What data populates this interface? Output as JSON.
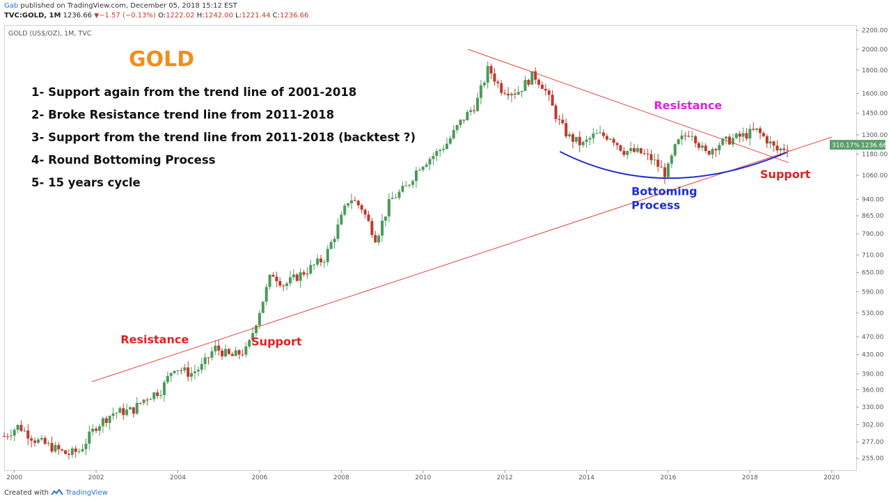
{
  "header": {
    "user": "Gab",
    "published": "published on TradingView.com, December 05, 2018 15:12 EST",
    "symbol": "TVC:GOLD, 1M",
    "last": "1236.66",
    "change": "−1.57 (−0.13%)",
    "o_label": "O:",
    "o": "1222.02",
    "h_label": "H:",
    "h": "1242.00",
    "l_label": "L:",
    "l": "1221.44",
    "c_label": "C:",
    "c": "1236.66"
  },
  "footer": {
    "created": "Created with",
    "brand": "TradingView"
  },
  "colors": {
    "up": "#4a9a5a",
    "down": "#c0392b",
    "trend": "#e8413a",
    "bottom_curve": "#1f2fd0",
    "axis_text": "#555555",
    "price_badge": "#5b9f6b"
  },
  "chart_data": {
    "type": "candlestick",
    "title": "GOLD",
    "instrument": "GOLD (US$/OZ), 1M, TVC",
    "y_scale": "log",
    "ylim": [
      240,
      2260
    ],
    "xlim": [
      1999.75,
      2020.6
    ],
    "x_ticks": [
      "2000",
      "2002",
      "2004",
      "2006",
      "2008",
      "2010",
      "2012",
      "2014",
      "2016",
      "2018",
      "2020"
    ],
    "y_ticks": [
      "2200.00",
      "2000.00",
      "1800.00",
      "1600.00",
      "1450.00",
      "1300.00",
      "1180.00",
      "1060.00",
      "940.00",
      "865.00",
      "790.00",
      "710.00",
      "650.00",
      "590.00",
      "530.00",
      "470.00",
      "430.00",
      "390.00",
      "360.00",
      "330.00",
      "302.00",
      "277.00",
      "255.00"
    ],
    "price_badge": {
      "percent": "310.17%",
      "price": "1236.66",
      "value": 1236.66
    },
    "notes": [
      "1- Support again from the trend line of 2001-2018",
      "2- Broke Resistance trend line from 2011-2018",
      "3- Support from the trend line from 2011-2018 (backtest ?)",
      "4- Round Bottoming Process",
      "5- 15 years cycle"
    ],
    "annotations": [
      {
        "text": "Resistance",
        "x": 2002.6,
        "y": 455,
        "color": "#e02020"
      },
      {
        "text": "Support",
        "x": 2005.8,
        "y": 450,
        "color": "#e02020"
      },
      {
        "text": "Resistance",
        "x": 2015.65,
        "y": 1480,
        "color": "#e020e0"
      },
      {
        "text": "Support",
        "x": 2018.25,
        "y": 1045,
        "color": "#e02020"
      },
      {
        "text": "Bottoming",
        "x": 2015.1,
        "y": 960,
        "color": "#1f2fd0"
      },
      {
        "text": "Process",
        "x": 2015.1,
        "y": 895,
        "color": "#1f2fd0"
      }
    ],
    "trendlines": [
      {
        "name": "long-term support",
        "x1": 2001.9,
        "y1": 375,
        "x2": 2020.0,
        "y2": 1285
      },
      {
        "name": "resistance 2011-2018",
        "x1": 2011.1,
        "y1": 2000,
        "x2": 2018.95,
        "y2": 1130
      }
    ],
    "bottoming_curve": {
      "x_start": 2013.35,
      "x_mid": 2016.0,
      "x_end": 2018.9,
      "y_start": 1195,
      "y_mid": 1045,
      "y_end": 1190
    },
    "anchors": [
      [
        1999.75,
        285
      ],
      [
        2000.1,
        300
      ],
      [
        2000.5,
        280
      ],
      [
        2000.9,
        270
      ],
      [
        2001.3,
        260
      ],
      [
        2001.6,
        265
      ],
      [
        2002.0,
        300
      ],
      [
        2002.4,
        320
      ],
      [
        2002.9,
        325
      ],
      [
        2003.2,
        345
      ],
      [
        2003.6,
        360
      ],
      [
        2003.9,
        405
      ],
      [
        2004.3,
        390
      ],
      [
        2004.6,
        405
      ],
      [
        2004.9,
        445
      ],
      [
        2005.3,
        425
      ],
      [
        2005.7,
        440
      ],
      [
        2005.95,
        520
      ],
      [
        2006.3,
        650
      ],
      [
        2006.6,
        610
      ],
      [
        2006.9,
        635
      ],
      [
        2007.3,
        670
      ],
      [
        2007.6,
        700
      ],
      [
        2007.9,
        810
      ],
      [
        2008.2,
        950
      ],
      [
        2008.5,
        900
      ],
      [
        2008.85,
        770
      ],
      [
        2009.2,
        935
      ],
      [
        2009.6,
        1000
      ],
      [
        2009.9,
        1110
      ],
      [
        2010.3,
        1180
      ],
      [
        2010.6,
        1250
      ],
      [
        2010.9,
        1380
      ],
      [
        2011.3,
        1520
      ],
      [
        2011.6,
        1820
      ],
      [
        2011.9,
        1640
      ],
      [
        2012.3,
        1610
      ],
      [
        2012.7,
        1760
      ],
      [
        2012.95,
        1660
      ],
      [
        2013.3,
        1400
      ],
      [
        2013.55,
        1290
      ],
      [
        2013.9,
        1235
      ],
      [
        2014.2,
        1300
      ],
      [
        2014.6,
        1290
      ],
      [
        2014.9,
        1200
      ],
      [
        2015.3,
        1190
      ],
      [
        2015.6,
        1150
      ],
      [
        2015.95,
        1065
      ],
      [
        2016.2,
        1240
      ],
      [
        2016.55,
        1330
      ],
      [
        2016.9,
        1180
      ],
      [
        2017.2,
        1240
      ],
      [
        2017.6,
        1275
      ],
      [
        2017.9,
        1300
      ],
      [
        2018.15,
        1330
      ],
      [
        2018.45,
        1260
      ],
      [
        2018.65,
        1200
      ],
      [
        2018.92,
        1225
      ]
    ]
  }
}
